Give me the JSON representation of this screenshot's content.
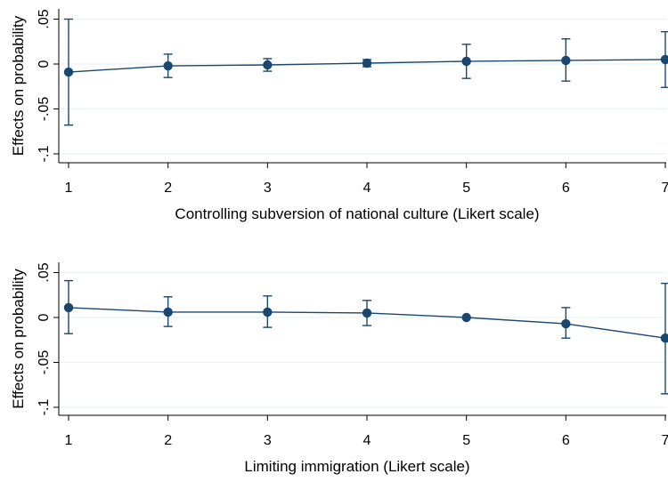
{
  "chart_data": [
    {
      "type": "line",
      "title": "",
      "xlabel": "Controlling subversion of national culture (Likert scale)",
      "ylabel": "Effects on probability",
      "x": [
        1,
        2,
        3,
        4,
        5,
        6,
        7
      ],
      "y_ticks": [
        ".05",
        "0",
        "-.05",
        "-.1"
      ],
      "y_tick_values": [
        0.05,
        0,
        -0.05,
        -0.1
      ],
      "ylim": [
        -0.1,
        0.05
      ],
      "xlim": [
        1,
        7
      ],
      "grid": true,
      "series": [
        {
          "values": [
            -0.009,
            -0.002,
            -0.001,
            0.001,
            0.003,
            0.004,
            0.005
          ],
          "ci_lower": [
            -0.068,
            -0.015,
            -0.008,
            -0.003,
            -0.016,
            -0.019,
            -0.026
          ],
          "ci_upper": [
            0.05,
            0.011,
            0.006,
            0.005,
            0.022,
            0.028,
            0.036
          ]
        }
      ],
      "colors": {
        "series": "#1a476f",
        "grid": "#eaf2f3"
      }
    },
    {
      "type": "line",
      "title": "",
      "xlabel": "Limiting immigration (Likert scale)",
      "ylabel": "Effects on probability",
      "x": [
        1,
        2,
        3,
        4,
        5,
        6,
        7
      ],
      "y_ticks": [
        ".05",
        "0",
        "-.05",
        "-.1"
      ],
      "y_tick_values": [
        0.05,
        0,
        -0.05,
        -0.1
      ],
      "ylim": [
        -0.1,
        0.05
      ],
      "xlim": [
        1,
        7
      ],
      "grid": true,
      "series": [
        {
          "values": [
            0.011,
            0.006,
            0.006,
            0.005,
            0.0,
            -0.007,
            -0.023
          ],
          "ci_lower": [
            -0.018,
            -0.01,
            -0.011,
            -0.009,
            0.0,
            -0.023,
            -0.085
          ],
          "ci_upper": [
            0.041,
            0.023,
            0.024,
            0.019,
            0.0,
            0.011,
            0.038
          ]
        }
      ],
      "colors": {
        "series": "#1a476f",
        "grid": "#eaf2f3"
      }
    }
  ]
}
